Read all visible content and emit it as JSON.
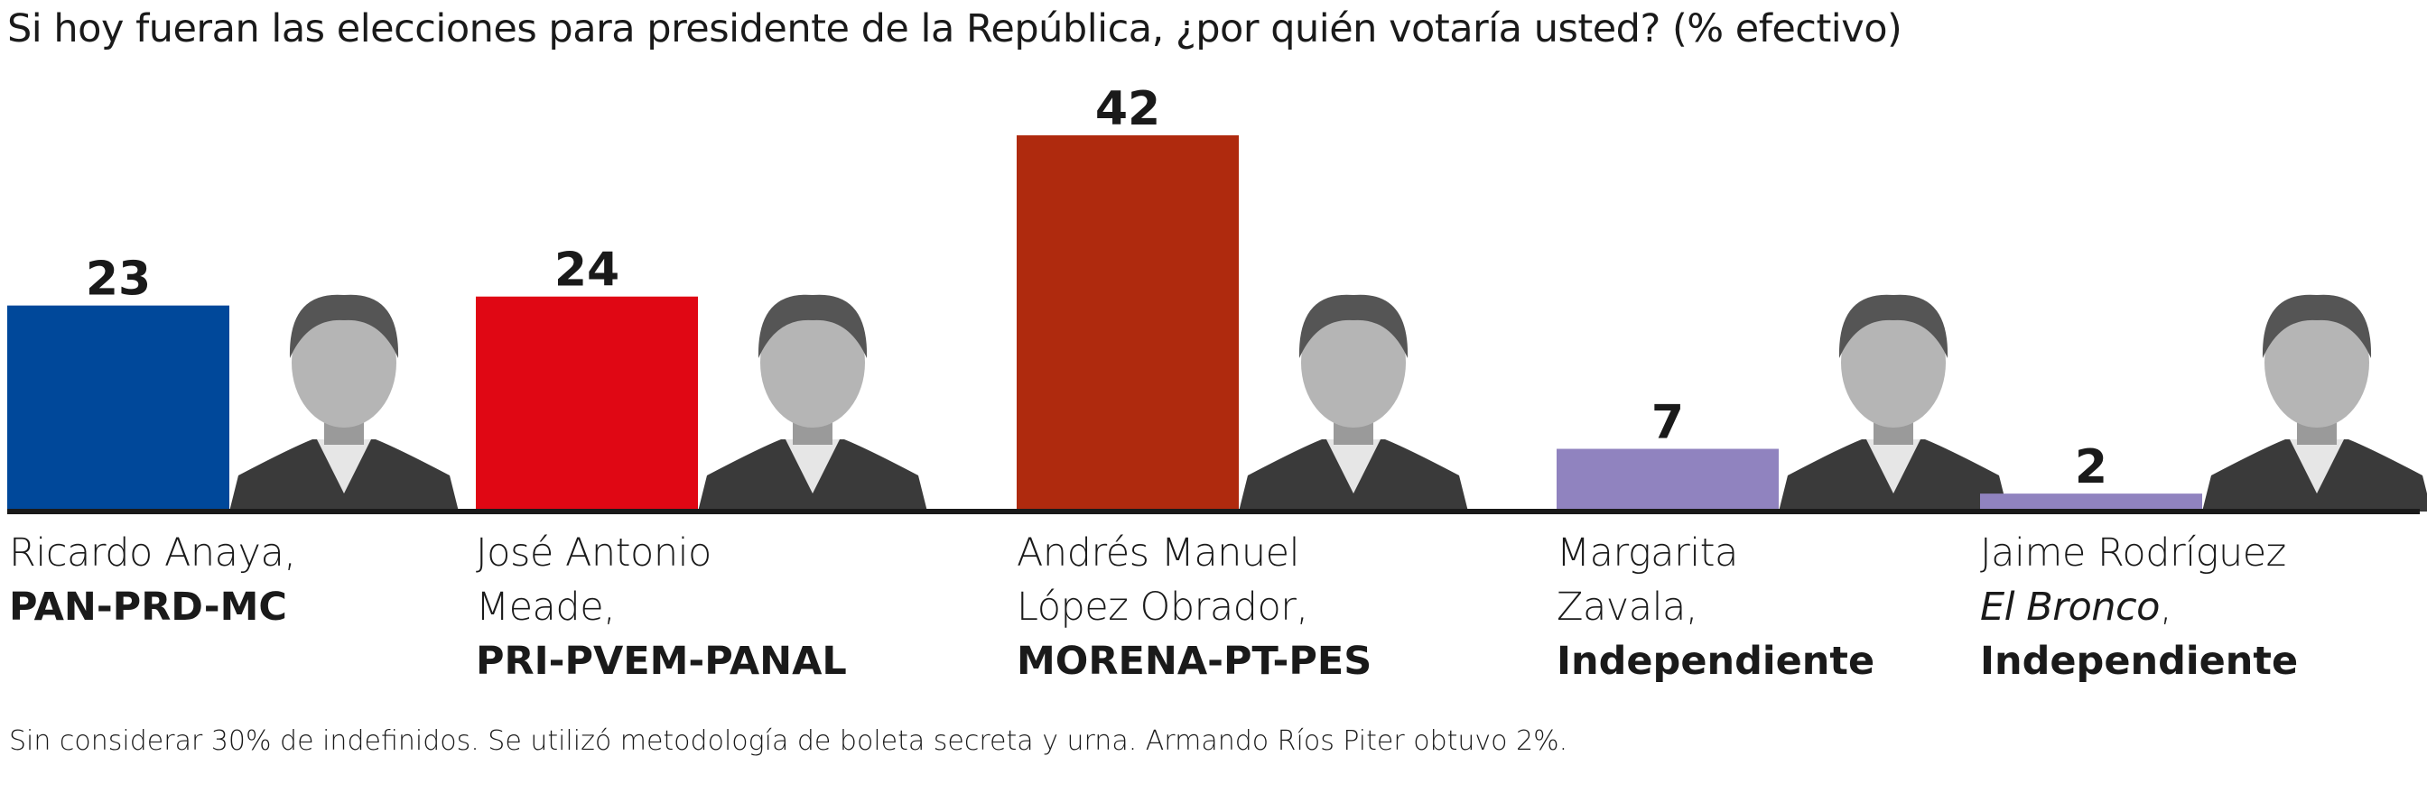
{
  "chart_data": {
    "type": "bar",
    "title": "Si hoy fueran las elecciones para presidente de la República, ¿por quién votaría usted? (% efectivo)",
    "categories": [
      "Ricardo Anaya, PAN-PRD-MC",
      "José Antonio Meade, PRI-PVEM-PANAL",
      "Andrés Manuel López Obrador, MORENA-PT-PES",
      "Margarita Zavala, Independiente",
      "Jaime Rodríguez El Bronco, Independiente"
    ],
    "values": [
      23,
      24,
      42,
      7,
      2
    ],
    "value_labels": [
      "23",
      "24",
      "42",
      "7",
      "2"
    ],
    "colors": [
      "#00489a",
      "#e00714",
      "#af2a0e",
      "#9083bf",
      "#9083bf"
    ],
    "ylim": [
      0,
      42
    ],
    "grid": false,
    "legend": "none",
    "footnote": "Sin considerar 30% de indefinidos. Se utilizó metodología de boleta secreta y urna. Armando Ríos Piter obtuvo 2%."
  },
  "candidates": [
    {
      "name_lines": [
        "Ricardo Anaya,"
      ],
      "party": "PAN-PRD-MC",
      "photo_icon": "candidate-portrait-icon"
    },
    {
      "name_lines": [
        "José Antonio",
        "Meade,"
      ],
      "party": "PRI-PVEM-PANAL",
      "photo_icon": "candidate-portrait-icon"
    },
    {
      "name_lines": [
        "Andrés Manuel",
        "López Obrador,"
      ],
      "party": "MORENA-PT-PES",
      "photo_icon": "candidate-portrait-icon"
    },
    {
      "name_lines": [
        "Margarita",
        "Zavala,"
      ],
      "party": "Independiente",
      "photo_icon": "candidate-portrait-icon"
    },
    {
      "name_lines": [
        "Jaime Rodríguez"
      ],
      "nickname": "El Bronco",
      "nickname_suffix": ",",
      "party": "Independiente",
      "photo_icon": "candidate-portrait-icon"
    }
  ]
}
